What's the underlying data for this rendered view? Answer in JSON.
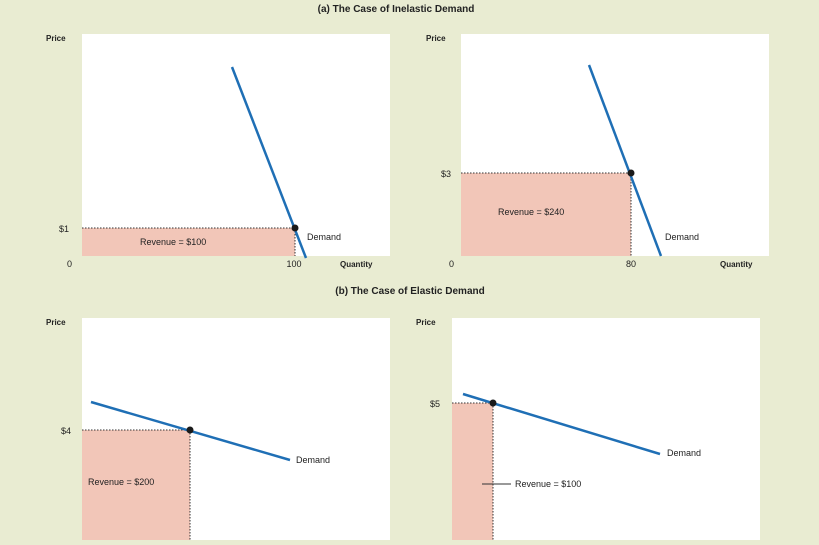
{
  "section_a_title": "(a) The Case of Inelastic Demand",
  "section_b_title": "(b) The Case of Elastic Demand",
  "colors": {
    "background": "#e9ecd2",
    "panel": "#ffffff",
    "demand_line": "#1f6fb5",
    "revenue_fill": "#f2c6b8",
    "point": "#1a1a1a"
  },
  "panels": [
    {
      "price_axis_label": "Price",
      "quantity_axis_label": "Quantity",
      "origin_label": "0",
      "price_label": "$1",
      "quantity_label": "100",
      "revenue_label": "Revenue = $100",
      "demand_label": "Demand",
      "price": 1,
      "quantity": 100
    },
    {
      "price_axis_label": "Price",
      "quantity_axis_label": "Quantity",
      "origin_label": "0",
      "price_label": "$3",
      "quantity_label": "80",
      "revenue_label": "Revenue = $240",
      "demand_label": "Demand",
      "price": 3,
      "quantity": 80
    },
    {
      "price_axis_label": "Price",
      "price_label": "$4",
      "revenue_label": "Revenue = $200",
      "demand_label": "Demand",
      "price": 4
    },
    {
      "price_axis_label": "Price",
      "price_label": "$5",
      "revenue_label": "Revenue = $100",
      "demand_label": "Demand",
      "price": 5
    }
  ]
}
